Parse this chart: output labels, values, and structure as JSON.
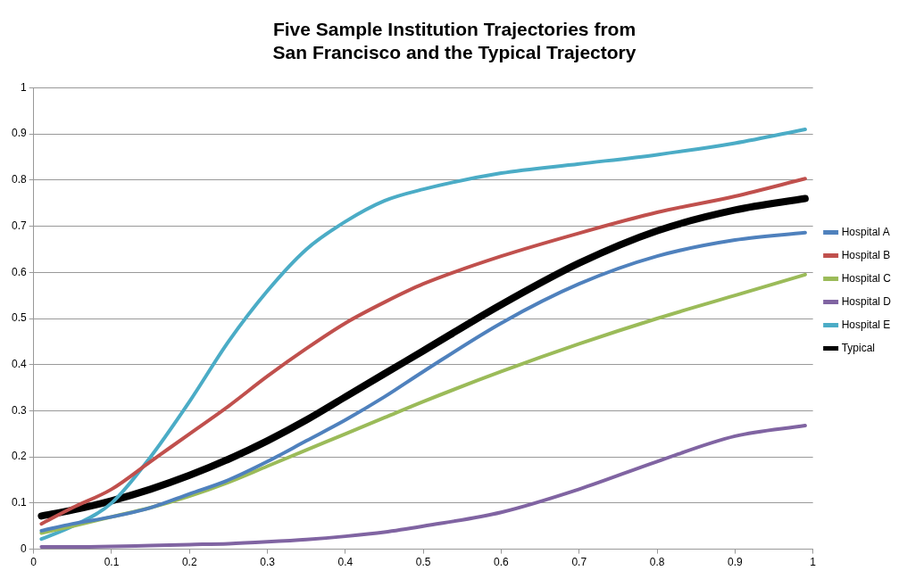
{
  "chart_data": {
    "type": "line",
    "title": "Five Sample Institution Trajectories from\nSan Francisco and the Typical Trajectory",
    "x": [
      0.01,
      0.05,
      0.1,
      0.15,
      0.2,
      0.25,
      0.3,
      0.35,
      0.4,
      0.45,
      0.5,
      0.6,
      0.7,
      0.8,
      0.9,
      0.99
    ],
    "series": [
      {
        "name": "Hospital A",
        "color": "#4f81bd",
        "values": [
          0.04,
          0.055,
          0.07,
          0.09,
          0.12,
          0.15,
          0.19,
          0.235,
          0.28,
          0.33,
          0.385,
          0.49,
          0.575,
          0.635,
          0.67,
          0.686
        ]
      },
      {
        "name": "Hospital B",
        "color": "#c0504d",
        "values": [
          0.055,
          0.09,
          0.13,
          0.19,
          0.25,
          0.31,
          0.375,
          0.435,
          0.49,
          0.535,
          0.575,
          0.635,
          0.685,
          0.73,
          0.765,
          0.803
        ]
      },
      {
        "name": "Hospital C",
        "color": "#9bbb59",
        "values": [
          0.035,
          0.05,
          0.07,
          0.09,
          0.115,
          0.145,
          0.18,
          0.215,
          0.25,
          0.285,
          0.32,
          0.385,
          0.445,
          0.5,
          0.55,
          0.595
        ]
      },
      {
        "name": "Hospital D",
        "color": "#8064a2",
        "values": [
          0.005,
          0.005,
          0.006,
          0.008,
          0.01,
          0.012,
          0.016,
          0.021,
          0.028,
          0.037,
          0.05,
          0.08,
          0.13,
          0.19,
          0.245,
          0.268
        ]
      },
      {
        "name": "Hospital E",
        "color": "#4bacc6",
        "values": [
          0.022,
          0.05,
          0.1,
          0.2,
          0.32,
          0.45,
          0.56,
          0.65,
          0.71,
          0.755,
          0.78,
          0.815,
          0.835,
          0.855,
          0.88,
          0.91
        ]
      },
      {
        "name": "Typical",
        "color": "#000000",
        "values": [
          0.072,
          0.085,
          0.105,
          0.13,
          0.16,
          0.195,
          0.235,
          0.28,
          0.33,
          0.38,
          0.43,
          0.53,
          0.62,
          0.69,
          0.735,
          0.76
        ]
      }
    ],
    "xlim": [
      0,
      1
    ],
    "xticks": [
      0,
      0.1,
      0.2,
      0.3,
      0.4,
      0.5,
      0.6,
      0.7,
      0.8,
      0.9,
      1
    ],
    "ylim": [
      0,
      1
    ],
    "yticks": [
      0,
      0.1,
      0.2,
      0.3,
      0.4,
      0.5,
      0.6,
      0.7,
      0.8,
      0.9,
      1
    ],
    "grid": "y",
    "legend": "right",
    "marker": "none",
    "line_style": "solid"
  }
}
